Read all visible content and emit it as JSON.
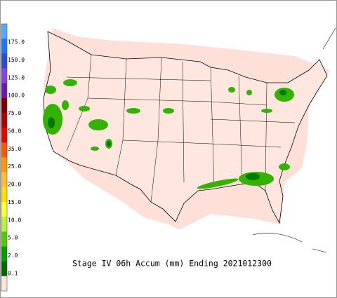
{
  "legend": {
    "labels": [
      "175.0",
      "150.0",
      "125.0",
      "100.0",
      "75.0",
      "50.0",
      "35.0",
      "25.0",
      "20.0",
      "15.0",
      "10.0",
      "5.0",
      "2.0",
      "0.1"
    ],
    "colors": [
      "#55aaff",
      "#1e78ff",
      "#2a4ad8",
      "#8a40e0",
      "#6a1aa8",
      "#7a0000",
      "#b00000",
      "#e80000",
      "#ff5500",
      "#ff9900",
      "#ffbb33",
      "#ffdd00",
      "#ffff33",
      "#b8f040",
      "#55c800",
      "#00a000",
      "#006a00",
      "#ffe4dc"
    ]
  },
  "caption": "Stage IV 06h Accum (mm) Ending 2021012300"
}
